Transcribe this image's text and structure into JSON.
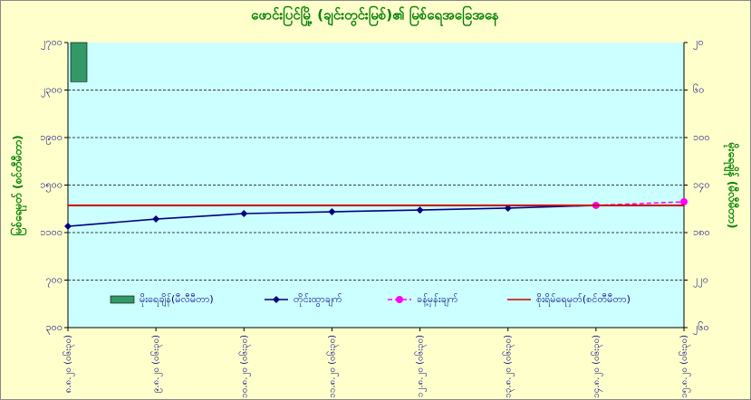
{
  "chart_data": {
    "type": "line",
    "title": "ဖောင်းပြင်မြို့ (ချင်းတွင်းမြစ်)၏ မြစ်ရေအခြေအနေ",
    "y_label": "မြစ်ရေမှတ် (စင်တီမီတာ)",
    "y2_label": "မိုးရေချိန် (မီလီမီတာ)",
    "categories": [
      "၈.၈.၂၀ (၀၆း၃၀)",
      "၉.၈.၂၀ (၀၆း၃၀)",
      "၁၀.၈.၂၀ (၀၆း၃၀)",
      "၁၁.၈.၂၀ (၀၆း၃၀)",
      "၁၂.၈.၂၀ (၀၆း၃၀)",
      "၁၃.၈.၂၀ (၀၆း၃၀)",
      "၁၄.၈.၂၀ (၀၆း၃၀)",
      "၁၅.၈.၂၀ (၀၆း၃၀)"
    ],
    "ylim": [
      300,
      2700
    ],
    "yticks": [
      {
        "value": 300,
        "label": "၃၀၀"
      },
      {
        "value": 700,
        "label": "၇၀၀"
      },
      {
        "value": 1100,
        "label": "၁၁၀၀"
      },
      {
        "value": 1500,
        "label": "၁၅၀၀"
      },
      {
        "value": 1900,
        "label": "၁၉၀၀"
      },
      {
        "value": 2300,
        "label": "၂၃၀၀"
      },
      {
        "value": 2700,
        "label": "၂၇၀၀"
      }
    ],
    "y2lim": [
      20,
      260
    ],
    "y2_inverted": true,
    "y2ticks": [
      {
        "value": 20,
        "label": "၂၀"
      },
      {
        "value": 60,
        "label": "၆၀"
      },
      {
        "value": 100,
        "label": "၁၀၀"
      },
      {
        "value": 140,
        "label": "၁၄၀"
      },
      {
        "value": 180,
        "label": "၁၈၀"
      },
      {
        "value": 220,
        "label": "၂၂၀"
      },
      {
        "value": 260,
        "label": "၂၆၀"
      }
    ],
    "grid": true,
    "series": [
      {
        "name": "မိုးရေချိန်(မီလီမီတာ)",
        "kind": "bar",
        "axis": "y2",
        "color": "#339966",
        "values": [
          53,
          null,
          null,
          null,
          null,
          null,
          null,
          null
        ]
      },
      {
        "name": "တိုင်းထွာချက်",
        "kind": "line",
        "color": "#000080",
        "marker": "diamond",
        "values": [
          1153,
          1214,
          1260,
          1275,
          1290,
          1306,
          1329,
          null
        ]
      },
      {
        "name": "ခန့်မှန်းချက်",
        "kind": "line",
        "color": "#ff00ff",
        "dashed": true,
        "marker": "circle",
        "values": [
          null,
          null,
          null,
          null,
          null,
          null,
          1329,
          1359
        ]
      },
      {
        "name": "စိုးရိမ်ရေမှတ်(စင်တီမီတာ)",
        "kind": "level",
        "color": "#cc0000",
        "value": 1329
      }
    ]
  }
}
